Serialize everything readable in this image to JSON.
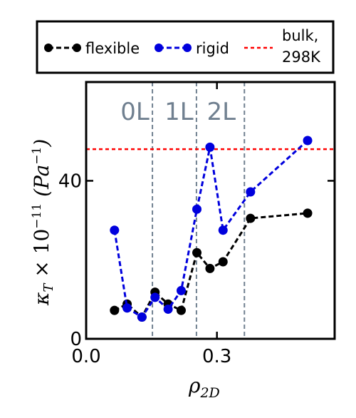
{
  "chart_data": {
    "type": "line",
    "xlabel": "ρ",
    "xlabel_sub": "2D",
    "ylabel": "κ",
    "ylabel_sub": "T",
    "ylabel_mid": " × 10",
    "ylabel_exp": "−11",
    "ylabel_unit": " (Pa",
    "ylabel_unit_exp": "−1",
    "ylabel_close": ")",
    "xlim": [
      0.0,
      0.57
    ],
    "ylim": [
      0,
      65
    ],
    "xticks": [
      {
        "value": 0.0,
        "label": "0.0"
      },
      {
        "value": 0.3,
        "label": "0.3"
      }
    ],
    "yticks": [
      {
        "value": 0,
        "label": "0"
      },
      {
        "value": 40,
        "label": "40"
      }
    ],
    "series": [
      {
        "name": "flexible",
        "color": "#000000",
        "x": [
          0.065,
          0.094,
          0.128,
          0.158,
          0.188,
          0.218,
          0.254,
          0.284,
          0.314,
          0.377,
          0.508
        ],
        "y": [
          7.2,
          8.8,
          5.5,
          11.8,
          8.8,
          7.2,
          21.8,
          17.8,
          19.5,
          30.5,
          31.8
        ]
      },
      {
        "name": "rigid",
        "color": "#0000dd",
        "x": [
          0.065,
          0.094,
          0.128,
          0.158,
          0.188,
          0.218,
          0.254,
          0.284,
          0.314,
          0.377,
          0.508
        ],
        "y": [
          27.5,
          7.8,
          5.5,
          10.5,
          7.5,
          12.2,
          32.8,
          48.5,
          27.5,
          37.2,
          50.2
        ]
      }
    ],
    "reference_line": {
      "name": "bulk,\n298K",
      "label_line1": "bulk,",
      "label_line2": "298K",
      "y": 48.0,
      "color": "#ff0000"
    },
    "regions": [
      {
        "label": "0L",
        "x": 0.112
      },
      {
        "label": "1L",
        "x": 0.213
      },
      {
        "label": "2L",
        "x": 0.31
      }
    ],
    "region_boundaries": [
      0.152,
      0.253,
      0.363
    ],
    "legend_placement": "top"
  }
}
